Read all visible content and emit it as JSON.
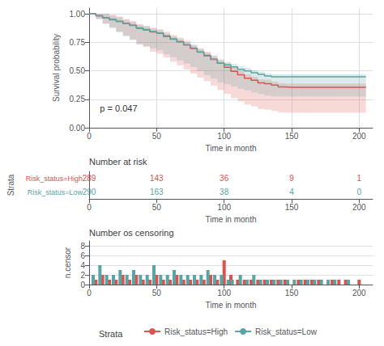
{
  "chart_data": [
    {
      "type": "line",
      "line_style": "step",
      "xlabel": "Time in month",
      "ylabel": "Survival probability",
      "xlim": [
        0,
        210
      ],
      "xticks": [
        0,
        50,
        100,
        150,
        200
      ],
      "ylim": [
        0.0,
        1.05
      ],
      "yticks": [
        {
          "value": 0.0,
          "label": "0.00"
        },
        {
          "value": 0.25,
          "label": "0.25"
        },
        {
          "value": 0.5,
          "label": "0.50"
        },
        {
          "value": 0.75,
          "label": "0.75"
        },
        {
          "value": 1.0,
          "label": "1.00"
        }
      ],
      "grid": true,
      "legend": "bottom",
      "legend_title": "Strata",
      "annotations": [
        {
          "text": "p = 0.047",
          "x": 8,
          "y": 0.17
        }
      ],
      "series": [
        {
          "name": "Risk_status=High",
          "color": "#d9534f",
          "x": [
            0,
            5,
            10,
            15,
            20,
            25,
            30,
            35,
            40,
            45,
            50,
            55,
            60,
            65,
            70,
            75,
            80,
            85,
            90,
            95,
            100,
            105,
            110,
            115,
            120,
            125,
            130,
            135,
            140,
            145,
            150,
            155,
            160,
            165,
            170,
            175,
            180,
            185,
            190,
            195,
            200,
            205
          ],
          "values": [
            1.0,
            0.982,
            0.965,
            0.951,
            0.934,
            0.916,
            0.899,
            0.872,
            0.858,
            0.841,
            0.83,
            0.806,
            0.778,
            0.756,
            0.727,
            0.695,
            0.663,
            0.635,
            0.6,
            0.565,
            0.53,
            0.495,
            0.464,
            0.435,
            0.416,
            0.394,
            0.387,
            0.374,
            0.358,
            0.354,
            0.354,
            0.354,
            0.354,
            0.354,
            0.354,
            0.354,
            0.354,
            0.354,
            0.354,
            0.354,
            0.354,
            0.354
          ],
          "lower": [
            1.0,
            0.954,
            0.913,
            0.882,
            0.845,
            0.809,
            0.775,
            0.729,
            0.71,
            0.667,
            0.649,
            0.616,
            0.58,
            0.547,
            0.512,
            0.476,
            0.44,
            0.409,
            0.37,
            0.331,
            0.297,
            0.26,
            0.231,
            0.203,
            0.188,
            0.165,
            0.158,
            0.147,
            0.135,
            0.131,
            0.131,
            0.131,
            0.131,
            0.131,
            0.131,
            0.131,
            0.131,
            0.131,
            0.131,
            0.131,
            0.131,
            0.131
          ],
          "upper": [
            1.0,
            1.0,
            1.0,
            0.991,
            0.976,
            0.954,
            0.935,
            0.906,
            0.895,
            0.876,
            0.865,
            0.843,
            0.813,
            0.791,
            0.763,
            0.729,
            0.697,
            0.667,
            0.636,
            0.601,
            0.566,
            0.531,
            0.498,
            0.468,
            0.448,
            0.425,
            0.421,
            0.405,
            0.391,
            0.387,
            0.387,
            0.387,
            0.387,
            0.387,
            0.387,
            0.387,
            0.387,
            0.387,
            0.387,
            0.387,
            0.387,
            0.387
          ]
        },
        {
          "name": "Risk_status=Low",
          "color": "#5ba4a4",
          "x": [
            0,
            5,
            10,
            15,
            20,
            25,
            30,
            35,
            40,
            45,
            50,
            55,
            60,
            65,
            70,
            75,
            80,
            85,
            90,
            95,
            100,
            105,
            110,
            115,
            120,
            125,
            130,
            135,
            140,
            145,
            150,
            155,
            160,
            165,
            170,
            175,
            180,
            185,
            190,
            195,
            200,
            205
          ],
          "values": [
            1.0,
            0.983,
            0.966,
            0.948,
            0.931,
            0.914,
            0.897,
            0.876,
            0.862,
            0.845,
            0.831,
            0.8,
            0.776,
            0.752,
            0.727,
            0.699,
            0.665,
            0.63,
            0.601,
            0.566,
            0.552,
            0.534,
            0.513,
            0.499,
            0.482,
            0.468,
            0.454,
            0.447,
            0.447,
            0.447,
            0.447,
            0.447,
            0.447,
            0.447,
            0.447,
            0.447,
            0.447,
            0.447,
            0.447,
            0.447,
            0.447,
            0.447
          ],
          "lower": [
            1.0,
            0.954,
            0.913,
            0.874,
            0.837,
            0.802,
            0.768,
            0.736,
            0.717,
            0.697,
            0.68,
            0.645,
            0.618,
            0.591,
            0.562,
            0.532,
            0.497,
            0.462,
            0.431,
            0.396,
            0.381,
            0.363,
            0.342,
            0.328,
            0.31,
            0.296,
            0.282,
            0.274,
            0.274,
            0.274,
            0.274,
            0.274,
            0.274,
            0.274,
            0.274,
            0.274,
            0.274,
            0.274,
            0.274,
            0.274,
            0.274,
            0.274
          ],
          "upper": [
            1.0,
            1.0,
            1.0,
            0.984,
            0.969,
            0.946,
            0.928,
            0.905,
            0.89,
            0.872,
            0.857,
            0.826,
            0.801,
            0.777,
            0.751,
            0.723,
            0.69,
            0.655,
            0.626,
            0.592,
            0.578,
            0.561,
            0.54,
            0.526,
            0.505,
            0.491,
            0.477,
            0.47,
            0.47,
            0.47,
            0.47,
            0.47,
            0.47,
            0.47,
            0.47,
            0.47,
            0.47,
            0.47,
            0.47,
            0.47,
            0.47,
            0.47
          ]
        }
      ]
    },
    {
      "type": "table",
      "title": "Number at risk",
      "xlabel": "Time in month",
      "ylabel": "Strata",
      "xlim": [
        0,
        210
      ],
      "xticks": [
        0,
        50,
        100,
        150,
        200
      ],
      "grid": false,
      "x": [
        0,
        50,
        100,
        150,
        200
      ],
      "series": [
        {
          "name": "Risk_status=High",
          "color": "#d9534f",
          "values": [
            289,
            143,
            36,
            9,
            1
          ]
        },
        {
          "name": "Risk_status=Low",
          "color": "#5ba4a4",
          "values": [
            290,
            163,
            38,
            4,
            0
          ]
        }
      ]
    },
    {
      "type": "bar",
      "title": "Number os censoring",
      "xlabel": "Time in month",
      "ylabel": "n.censor",
      "xlim": [
        0,
        210
      ],
      "xticks": [
        0,
        50,
        100,
        150,
        200
      ],
      "ylim": [
        0,
        9
      ],
      "yticks": [
        0,
        2,
        4,
        6,
        8
      ],
      "grid": "y",
      "series": [
        {
          "name": "Risk_status=High",
          "color": "#d9534f",
          "x": [
            5,
            10,
            15,
            20,
            25,
            30,
            35,
            40,
            45,
            50,
            55,
            60,
            65,
            70,
            75,
            80,
            85,
            90,
            95,
            100,
            105,
            110,
            115,
            120,
            125,
            130,
            135,
            140,
            145,
            155,
            160,
            165,
            170,
            180,
            185,
            190,
            200
          ],
          "values": [
            1,
            2,
            1,
            1,
            2,
            1,
            2,
            1,
            1,
            2,
            1,
            1,
            2,
            1,
            1,
            1,
            1,
            2,
            1,
            5,
            2,
            1,
            1,
            1,
            1,
            1,
            1,
            1,
            1,
            1,
            1,
            1,
            1,
            1,
            1,
            1,
            1
          ]
        },
        {
          "name": "Risk_status=Low",
          "color": "#5ba4a4",
          "x": [
            3,
            8,
            13,
            18,
            23,
            28,
            33,
            38,
            43,
            48,
            53,
            58,
            63,
            68,
            73,
            78,
            83,
            88,
            93,
            98,
            103,
            106,
            112,
            117,
            122,
            127,
            132,
            137,
            142,
            147,
            152,
            157,
            162,
            167,
            172,
            177,
            182,
            192
          ],
          "values": [
            2,
            4,
            2,
            2,
            3,
            2,
            3,
            2,
            2,
            4,
            2,
            2,
            3,
            2,
            2,
            2,
            2,
            3,
            2,
            2,
            1,
            1,
            2,
            1,
            2,
            1,
            1,
            1,
            1,
            1,
            1,
            1,
            1,
            1,
            1,
            1,
            1,
            1
          ]
        }
      ]
    }
  ]
}
